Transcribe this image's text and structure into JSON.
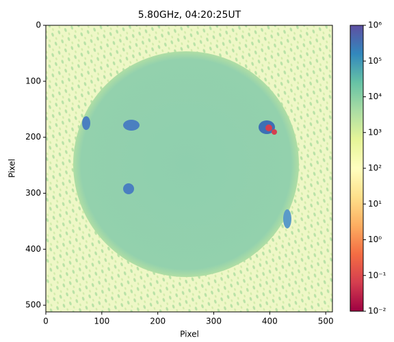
{
  "chart_data": {
    "type": "heatmap",
    "title": "5.80GHz, 04:20:25UT",
    "xlabel": "Pixel",
    "ylabel": "Pixel",
    "xlim": [
      0,
      512
    ],
    "ylim": [
      512,
      0
    ],
    "xticks": [
      0,
      100,
      200,
      300,
      400,
      500
    ],
    "yticks": [
      0,
      100,
      200,
      300,
      400,
      500
    ],
    "colormap": "Spectral",
    "colorbar": {
      "scale": "log",
      "lim": [
        0.01,
        1000000
      ],
      "ticks": [
        {
          "value": 0.01,
          "label": "10⁻²"
        },
        {
          "value": 0.1,
          "label": "10⁻¹"
        },
        {
          "value": 1,
          "label": "10⁰"
        },
        {
          "value": 10,
          "label": "10¹"
        },
        {
          "value": 100,
          "label": "10²"
        },
        {
          "value": 1000,
          "label": "10³"
        },
        {
          "value": 10000,
          "label": "10⁴"
        },
        {
          "value": 100000,
          "label": "10⁵"
        },
        {
          "value": 1000000,
          "label": "10⁶"
        }
      ]
    }
  }
}
